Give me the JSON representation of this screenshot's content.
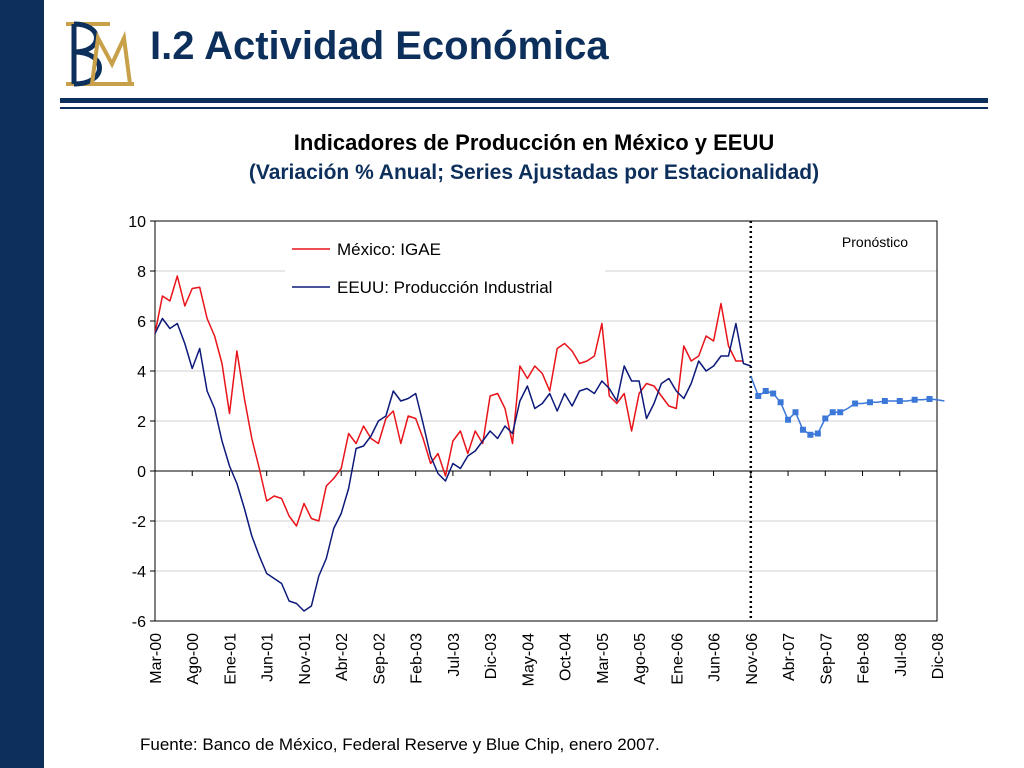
{
  "slide": {
    "title": "I.2 Actividad Económica",
    "logo_text": "BM",
    "source": "Fuente: Banco de México, Federal Reserve y Blue Chip, enero 2007."
  },
  "colors": {
    "navy": "#0d2f5c",
    "mexico_series": "#e8141a",
    "usa_series": "#0d1a7a",
    "forecast_series": "#3c78d8",
    "logo_gold": "#c8a04a"
  },
  "chart_data": {
    "type": "line",
    "title": "Indicadores de Producción en México y EEUU",
    "subtitle": "(Variación % Anual; Series Ajustadas por Estacionalidad)",
    "xlabel": "",
    "ylabel": "",
    "ylim": [
      -6,
      10
    ],
    "yticks": [
      -6,
      -4,
      -2,
      0,
      2,
      4,
      6,
      8,
      10
    ],
    "x_start": "Mar-00",
    "x_end": "Dic-08",
    "x_tick_labels": [
      "Mar-00",
      "Ago-00",
      "Ene-01",
      "Jun-01",
      "Nov-01",
      "Abr-02",
      "Sep-02",
      "Feb-03",
      "Jul-03",
      "Dic-03",
      "May-04",
      "Oct-04",
      "Mar-05",
      "Ago-05",
      "Ene-06",
      "Jun-06",
      "Nov-06",
      "Abr-07",
      "Sep-07",
      "Feb-08",
      "Jul-08",
      "Dic-08"
    ],
    "forecast_divider": "Nov-06",
    "forecast_label": "Pronóstico",
    "grid": true,
    "legend_position": "top-left",
    "series": [
      {
        "name": "México: IGAE",
        "start": "Mar-00",
        "values": [
          5.5,
          7.0,
          6.8,
          7.8,
          6.6,
          7.3,
          7.35,
          6.1,
          5.4,
          4.3,
          2.3,
          4.8,
          2.9,
          1.3,
          0.1,
          -1.2,
          -1.0,
          -1.1,
          -1.8,
          -2.2,
          -1.3,
          -1.9,
          -2.0,
          -0.6,
          -0.3,
          0.1,
          1.5,
          1.1,
          1.8,
          1.3,
          1.1,
          2.1,
          2.4,
          1.1,
          2.2,
          2.1,
          1.3,
          0.3,
          0.7,
          -0.2,
          1.2,
          1.6,
          0.7,
          1.6,
          1.1,
          3.0,
          3.1,
          2.5,
          1.1,
          4.2,
          3.7,
          4.2,
          3.9,
          3.2,
          4.9,
          5.1,
          4.8,
          4.3,
          4.4,
          4.6,
          5.9,
          3.0,
          2.7,
          3.1,
          1.6,
          3.1,
          3.5,
          3.4,
          3.0,
          2.6,
          2.5,
          5.0,
          4.4,
          4.6,
          5.4,
          5.2,
          6.7,
          5.0,
          4.4,
          4.4
        ]
      },
      {
        "name": "EEUU: Producción Industrial",
        "start": "Mar-00",
        "values": [
          5.5,
          6.1,
          5.7,
          5.9,
          5.1,
          4.1,
          4.9,
          3.2,
          2.5,
          1.2,
          0.2,
          -0.5,
          -1.5,
          -2.6,
          -3.4,
          -4.1,
          -4.3,
          -4.5,
          -5.2,
          -5.3,
          -5.6,
          -5.4,
          -4.2,
          -3.5,
          -2.3,
          -1.7,
          -0.7,
          0.9,
          1.0,
          1.4,
          2.0,
          2.2,
          3.2,
          2.8,
          2.9,
          3.1,
          1.9,
          0.6,
          -0.1,
          -0.4,
          0.3,
          0.1,
          0.6,
          0.8,
          1.2,
          1.6,
          1.3,
          1.8,
          1.5,
          2.8,
          3.4,
          2.5,
          2.7,
          3.1,
          2.4,
          3.1,
          2.6,
          3.2,
          3.3,
          3.1,
          3.6,
          3.3,
          2.8,
          4.2,
          3.6,
          3.6,
          2.1,
          2.7,
          3.5,
          3.7,
          3.2,
          2.9,
          3.5,
          4.4,
          4.0,
          4.2,
          4.6,
          4.6,
          5.9,
          4.3,
          4.2
        ]
      },
      {
        "name": "Pronóstico",
        "start": "Nov-06",
        "values": [
          3.8,
          3.0,
          3.2,
          3.1,
          2.75,
          2.05,
          2.35,
          1.65,
          1.45,
          1.5,
          2.1,
          2.35,
          2.35,
          2.5,
          2.7,
          2.7,
          2.75,
          2.75,
          2.8,
          2.8,
          2.8,
          2.8,
          2.85,
          2.85,
          2.88,
          2.85,
          2.8
        ],
        "markers": [
          false,
          true,
          true,
          true,
          true,
          true,
          true,
          true,
          true,
          true,
          true,
          true,
          true,
          false,
          true,
          false,
          true,
          false,
          true,
          false,
          true,
          false,
          true,
          false,
          true,
          false,
          false
        ]
      }
    ]
  }
}
